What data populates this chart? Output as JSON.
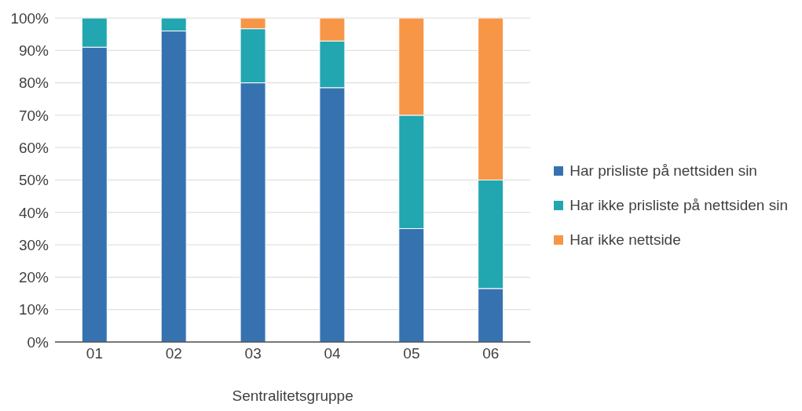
{
  "chart_data": {
    "type": "bar",
    "stacked": true,
    "xlabel": "Sentralitetsgruppe",
    "categories": [
      "01",
      "02",
      "03",
      "04",
      "05",
      "06"
    ],
    "series": [
      {
        "name": "Har prisliste på nettsiden sin",
        "color": "#3672b0",
        "values": [
          91,
          96,
          80,
          78.5,
          35,
          16.5
        ]
      },
      {
        "name": "Har ikke prisliste på nettsiden sin",
        "color": "#22a6b0",
        "values": [
          9,
          4,
          16.7,
          14.4,
          35,
          33.5
        ]
      },
      {
        "name": "Har ikke nettside",
        "color": "#f79646",
        "values": [
          0,
          0,
          3.3,
          7.1,
          30,
          50
        ]
      }
    ],
    "ylim": [
      0,
      100
    ],
    "yticks": [
      {
        "value": 0,
        "label": "0%"
      },
      {
        "value": 10,
        "label": "10%"
      },
      {
        "value": 20,
        "label": "20%"
      },
      {
        "value": 30,
        "label": "30%"
      },
      {
        "value": 40,
        "label": "40%"
      },
      {
        "value": 50,
        "label": "50%"
      },
      {
        "value": 60,
        "label": "60%"
      },
      {
        "value": 70,
        "label": "70%"
      },
      {
        "value": 80,
        "label": "80%"
      },
      {
        "value": 90,
        "label": "90%"
      },
      {
        "value": 100,
        "label": "100%"
      }
    ],
    "grid": "y",
    "legend": "right"
  }
}
